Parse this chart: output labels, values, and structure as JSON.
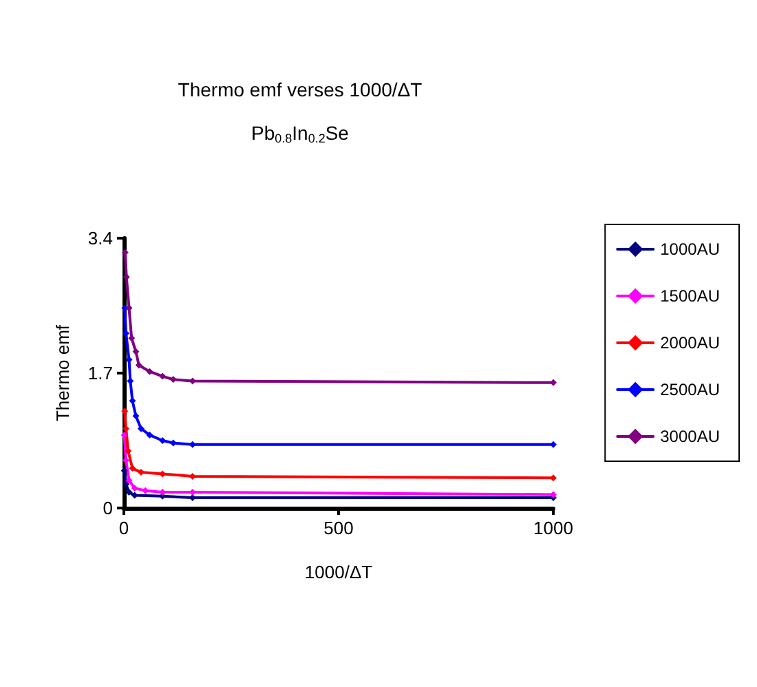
{
  "chart_data": {
    "type": "line",
    "title": "Thermo emf verses 1000/ΔT",
    "subtitle": "Pb$_{0.8}$In$_{0.2}$Se",
    "xlabel": "1000/ΔT",
    "ylabel": "Thermo emf",
    "xlim": [
      0,
      1000
    ],
    "xticks": [
      0,
      500,
      1000
    ],
    "ylim": [
      0,
      3.4
    ],
    "yticks": [
      0,
      1.7,
      3.4
    ],
    "grid": false,
    "legend": "right",
    "marker": "diamond",
    "series": [
      {
        "name": "1000AU",
        "color": "#000080",
        "x": [
          1,
          5,
          12,
          25,
          90,
          160,
          1000
        ],
        "values": [
          0.47,
          0.3,
          0.2,
          0.16,
          0.15,
          0.13,
          0.13
        ]
      },
      {
        "name": "1500AU",
        "color": "#ff00ff",
        "x": [
          1,
          5,
          12,
          25,
          50,
          90,
          160,
          1000
        ],
        "values": [
          0.92,
          0.6,
          0.35,
          0.25,
          0.22,
          0.2,
          0.2,
          0.17
        ]
      },
      {
        "name": "2000AU",
        "color": "#ff0000",
        "x": [
          2,
          5,
          10,
          20,
          40,
          90,
          160,
          1000
        ],
        "values": [
          1.22,
          1.0,
          0.72,
          0.5,
          0.45,
          0.43,
          0.4,
          0.38
        ]
      },
      {
        "name": "2500AU",
        "color": "#0000ff",
        "x": [
          2,
          5,
          12,
          15,
          20,
          28,
          40,
          60,
          90,
          115,
          160,
          1000
        ],
        "values": [
          2.52,
          2.2,
          1.87,
          1.6,
          1.35,
          1.16,
          1.0,
          0.92,
          0.85,
          0.82,
          0.8,
          0.8
        ]
      },
      {
        "name": "3000AU",
        "color": "#800080",
        "x": [
          3,
          6,
          12,
          18,
          28,
          35,
          60,
          90,
          115,
          160,
          1000
        ],
        "values": [
          3.22,
          2.91,
          2.52,
          2.14,
          1.97,
          1.8,
          1.72,
          1.66,
          1.62,
          1.6,
          1.58
        ]
      }
    ]
  }
}
